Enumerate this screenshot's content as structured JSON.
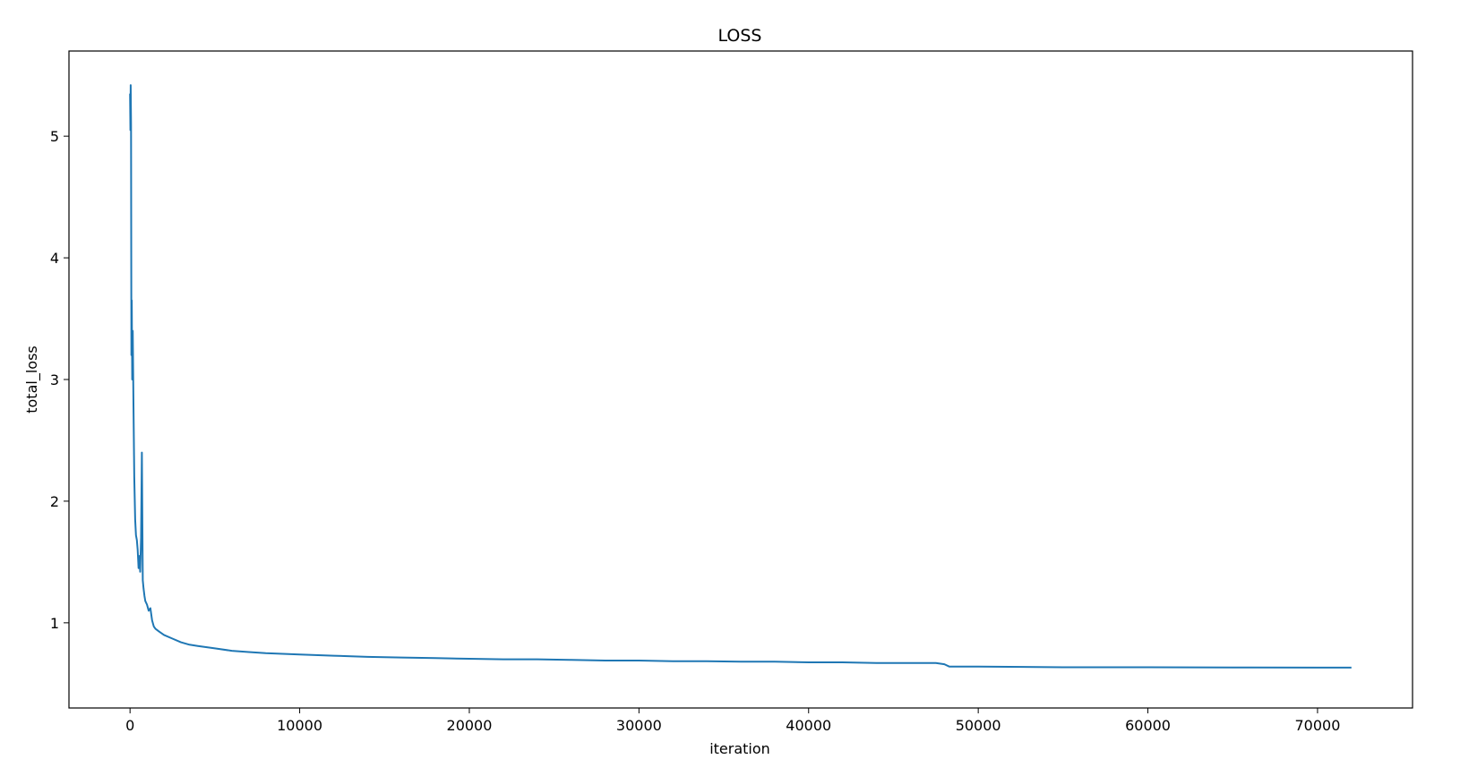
{
  "chart_data": {
    "type": "line",
    "title": "LOSS",
    "xlabel": "iteration",
    "ylabel": "total_loss",
    "xlim": [
      -3600,
      75600
    ],
    "ylim": [
      0.3,
      5.7
    ],
    "xticks": [
      0,
      10000,
      20000,
      30000,
      40000,
      50000,
      60000,
      70000
    ],
    "yticks": [
      1,
      2,
      3,
      4,
      5
    ],
    "grid": false,
    "legend": "none",
    "series": [
      {
        "color": "#1f77b4",
        "x": [
          0,
          20,
          40,
          60,
          80,
          100,
          130,
          160,
          200,
          250,
          300,
          350,
          400,
          450,
          500,
          550,
          600,
          650,
          700,
          750,
          800,
          850,
          900,
          1000,
          1100,
          1200,
          1300,
          1400,
          1500,
          1700,
          2000,
          2500,
          3000,
          3500,
          4000,
          5000,
          6000,
          7000,
          8000,
          10000,
          12000,
          14000,
          16000,
          18000,
          20000,
          22000,
          24000,
          26000,
          28000,
          30000,
          32000,
          34000,
          36000,
          38000,
          40000,
          42000,
          44000,
          46000,
          47500,
          48000,
          48300,
          50000,
          55000,
          60000,
          65000,
          70000,
          72000
        ],
        "y": [
          5.35,
          5.05,
          5.42,
          5.1,
          3.2,
          3.65,
          3.0,
          3.4,
          2.8,
          2.2,
          1.85,
          1.72,
          1.68,
          1.6,
          1.45,
          1.55,
          1.42,
          1.7,
          2.4,
          1.35,
          1.28,
          1.22,
          1.18,
          1.15,
          1.1,
          1.12,
          1.02,
          0.97,
          0.95,
          0.93,
          0.9,
          0.87,
          0.84,
          0.82,
          0.81,
          0.79,
          0.77,
          0.76,
          0.75,
          0.74,
          0.73,
          0.72,
          0.715,
          0.71,
          0.705,
          0.7,
          0.7,
          0.695,
          0.69,
          0.69,
          0.685,
          0.685,
          0.68,
          0.68,
          0.675,
          0.675,
          0.67,
          0.67,
          0.67,
          0.66,
          0.64,
          0.64,
          0.635,
          0.635,
          0.633,
          0.632,
          0.632
        ]
      }
    ]
  }
}
